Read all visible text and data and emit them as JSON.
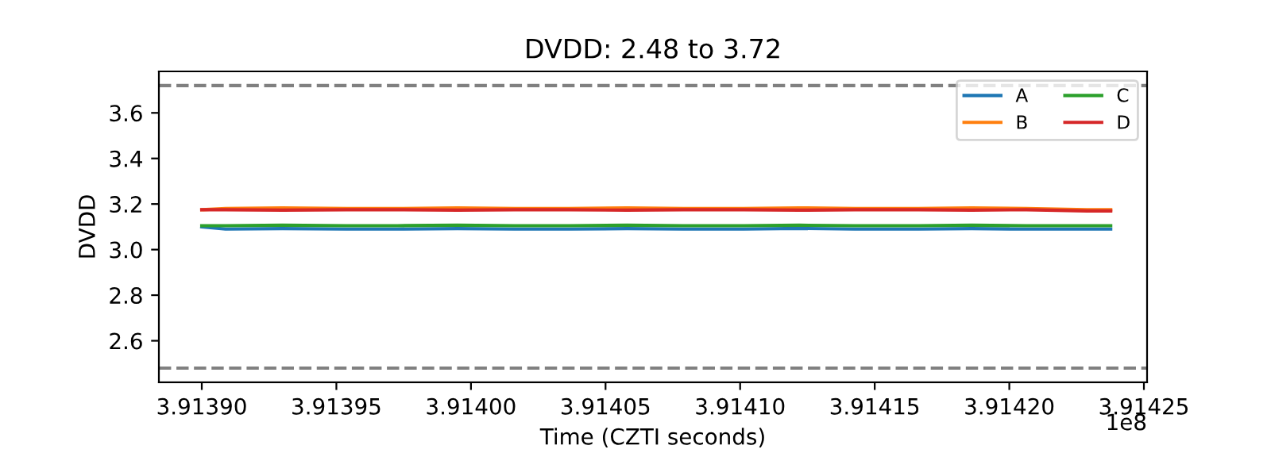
{
  "chart_data": {
    "type": "line",
    "title": "DVDD: 2.48 to 3.72",
    "xlabel": "Time (CZTI seconds)",
    "ylabel": "DVDD",
    "annotations": [
      "1e8"
    ],
    "x": [
      3.9139,
      3.91390885,
      3.91393,
      3.91395372,
      3.91397261,
      3.913995,
      3.91401629,
      3.91403636,
      3.914058,
      3.91407887,
      3.9141013,
      3.914122,
      3.91414262,
      3.91416623,
      3.914186,
      3.91420637,
      3.91422881,
      3.91423766
    ],
    "series": [
      {
        "name": "A",
        "color": "#1f77b4",
        "values": [
          3.1,
          3.09,
          3.092,
          3.09,
          3.09,
          3.092,
          3.09,
          3.09,
          3.092,
          3.09,
          3.09,
          3.093,
          3.09,
          3.09,
          3.092,
          3.09,
          3.09,
          3.09
        ]
      },
      {
        "name": "B",
        "color": "#ff7f0e",
        "values": [
          3.175,
          3.18,
          3.183,
          3.18,
          3.18,
          3.183,
          3.18,
          3.18,
          3.183,
          3.18,
          3.18,
          3.183,
          3.18,
          3.18,
          3.183,
          3.18,
          3.175,
          3.175
        ]
      },
      {
        "name": "C",
        "color": "#2ca02c",
        "values": [
          3.105,
          3.105,
          3.107,
          3.105,
          3.105,
          3.107,
          3.105,
          3.105,
          3.107,
          3.105,
          3.105,
          3.107,
          3.105,
          3.105,
          3.107,
          3.105,
          3.105,
          3.105
        ]
      },
      {
        "name": "D",
        "color": "#d62728",
        "values": [
          3.175,
          3.175,
          3.173,
          3.175,
          3.175,
          3.173,
          3.175,
          3.175,
          3.173,
          3.175,
          3.175,
          3.173,
          3.175,
          3.175,
          3.173,
          3.175,
          3.17,
          3.17
        ]
      }
    ],
    "ref_lines": [
      {
        "axis": "y",
        "value": 3.72,
        "color": "#808080",
        "line_style": "dashed"
      },
      {
        "axis": "y",
        "value": 2.48,
        "color": "#808080",
        "line_style": "dashed"
      }
    ],
    "xlim": [
      3.91388406,
      3.91425118
    ],
    "xticks": [
      {
        "value": 3.9139,
        "label": "3.91390"
      },
      {
        "value": 3.91395,
        "label": "3.91395"
      },
      {
        "value": 3.914,
        "label": "3.91400"
      },
      {
        "value": 3.91405,
        "label": "3.91405"
      },
      {
        "value": 3.9141,
        "label": "3.91410"
      },
      {
        "value": 3.91415,
        "label": "3.91415"
      },
      {
        "value": 3.9142,
        "label": "3.91420"
      },
      {
        "value": 3.91425,
        "label": "3.91425"
      }
    ],
    "ylim": [
      2.418,
      3.782
    ],
    "yticks": [
      2.6,
      2.8,
      {
        "value": 3,
        "label": "3.0"
      },
      3.2,
      3.4,
      3.6
    ],
    "legend": "top right",
    "grid": false
  }
}
